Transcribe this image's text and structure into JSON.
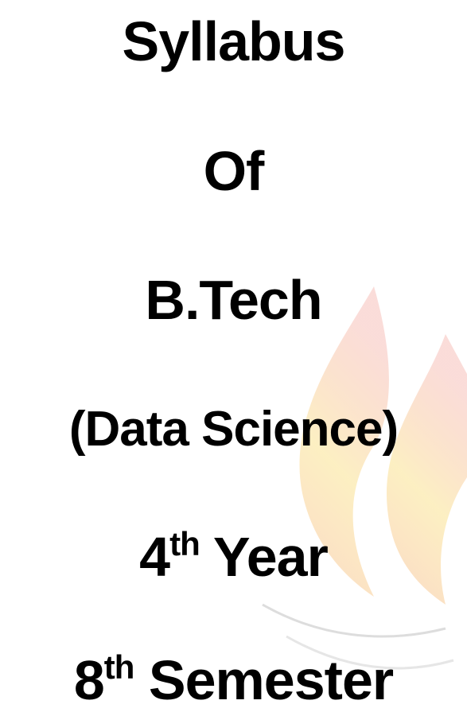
{
  "lines": [
    {
      "text": "Syllabus"
    },
    {
      "text": "Of"
    },
    {
      "text": "B.Tech"
    },
    {
      "text": "(Data Science)"
    },
    {
      "number": "4",
      "suffix": "th",
      "text": "Year"
    },
    {
      "number": "8",
      "suffix": "th",
      "text": "Semester"
    }
  ]
}
